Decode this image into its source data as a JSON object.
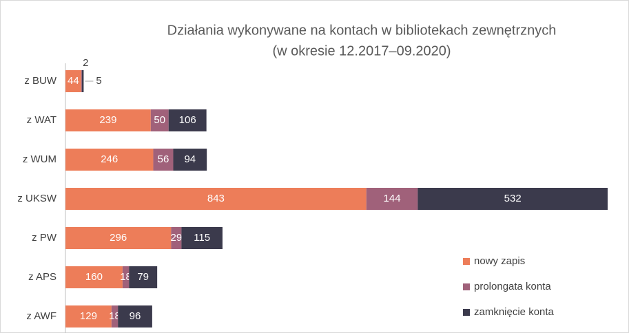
{
  "chart_data": {
    "type": "bar",
    "orientation": "horizontal",
    "stacked": true,
    "title": "Działania wykonywane na kontach w bibliotekach zewnętrznych",
    "subtitle": "(w okresie 12.2017–09.2020)",
    "categories": [
      "z BUW",
      "z WAT",
      "z WUM",
      "z UKSW",
      "z PW",
      "z APS",
      "z AWF"
    ],
    "series": [
      {
        "name": "nowy zapis",
        "color": "#ed7d59",
        "values": [
          44,
          239,
          246,
          843,
          296,
          160,
          129
        ]
      },
      {
        "name": "prolongata konta",
        "color": "#a0617a",
        "values": [
          2,
          50,
          56,
          144,
          29,
          18,
          18
        ]
      },
      {
        "name": "zamknięcie konta",
        "color": "#3b3a4c",
        "values": [
          5,
          106,
          94,
          532,
          115,
          79,
          96
        ]
      }
    ],
    "legend": "right-bottom"
  }
}
